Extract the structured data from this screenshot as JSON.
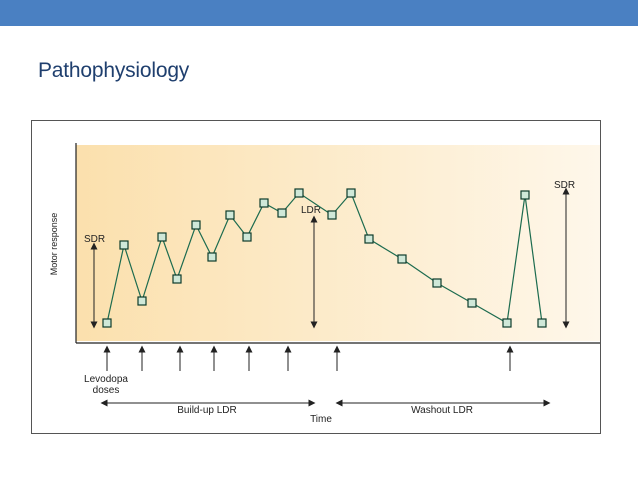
{
  "slide": {
    "title": "Pathophysiology"
  },
  "header_bar_color": "#4a80c2",
  "diagram": {
    "y_axis_label": "Motor response",
    "x_axis_label": "Time",
    "labels": {
      "sdr_left": "SDR",
      "ldr": "LDR",
      "sdr_right": "SDR",
      "doses_line1": "Levodopa",
      "doses_line2": "doses",
      "buildup": "Build-up LDR",
      "washout": "Washout LDR"
    },
    "response_series": [
      {
        "t": 75,
        "r": 0
      },
      {
        "t": 92,
        "r": 78
      },
      {
        "t": 110,
        "r": 22
      },
      {
        "t": 130,
        "r": 86
      },
      {
        "t": 145,
        "r": 44
      },
      {
        "t": 164,
        "r": 98
      },
      {
        "t": 180,
        "r": 66
      },
      {
        "t": 198,
        "r": 108
      },
      {
        "t": 215,
        "r": 86
      },
      {
        "t": 232,
        "r": 120
      },
      {
        "t": 250,
        "r": 110
      },
      {
        "t": 267,
        "r": 130
      },
      {
        "t": 300,
        "r": 108
      },
      {
        "t": 319,
        "r": 130
      },
      {
        "t": 337,
        "r": 84
      },
      {
        "t": 370,
        "r": 64
      },
      {
        "t": 405,
        "r": 40
      },
      {
        "t": 440,
        "r": 20
      },
      {
        "t": 475,
        "r": 0
      },
      {
        "t": 493,
        "r": 128
      },
      {
        "t": 510,
        "r": 0
      }
    ],
    "dose_times": [
      75,
      110,
      148,
      182,
      217,
      256,
      305,
      478
    ],
    "colors": {
      "background_gradient_start": "#fbe0ad",
      "background_gradient_end": "#fef7ea",
      "line": "#1c6b4f",
      "marker_fill": "#cfe8d8",
      "marker_stroke": "#0d3b2b"
    }
  }
}
